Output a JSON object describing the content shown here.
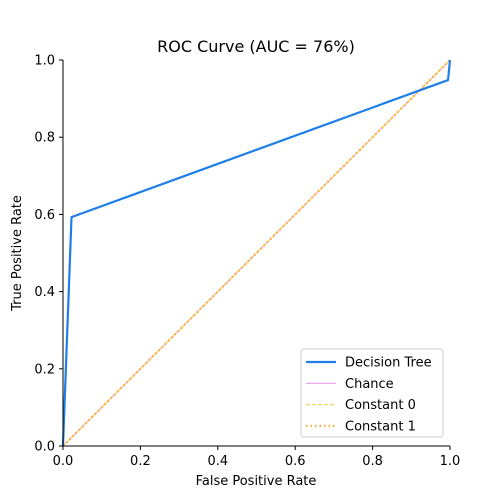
{
  "chart_data": {
    "type": "line",
    "title": "ROC Curve (AUC = 76%)",
    "xlabel": "False Positive Rate",
    "ylabel": "True Positive Rate",
    "xlim": [
      0.0,
      1.0
    ],
    "ylim": [
      0.0,
      1.0
    ],
    "x_ticks": [
      "0.0",
      "0.2",
      "0.4",
      "0.6",
      "0.8",
      "1.0"
    ],
    "y_ticks": [
      "0.0",
      "0.2",
      "0.4",
      "0.6",
      "0.8",
      "1.0"
    ],
    "grid": false,
    "legend_position": "lower-right",
    "series": [
      {
        "name": "Decision Tree",
        "color": "#1f7ee8",
        "style": "solid",
        "x": [
          0.0,
          0.022,
          0.995,
          1.0
        ],
        "y": [
          0.0,
          0.593,
          0.948,
          1.0
        ]
      },
      {
        "name": "Chance",
        "color": "#e392e3",
        "style": "solid-thin",
        "x": [
          0.0,
          1.0
        ],
        "y": [
          0.0,
          1.0
        ]
      },
      {
        "name": "Constant 0",
        "color": "#f5d33c",
        "style": "dashed",
        "x": [
          0.0,
          1.0
        ],
        "y": [
          0.0,
          1.0
        ]
      },
      {
        "name": "Constant 1",
        "color": "#fbae40",
        "style": "dotted",
        "x": [
          0.0,
          1.0
        ],
        "y": [
          0.0,
          1.0
        ]
      }
    ]
  }
}
